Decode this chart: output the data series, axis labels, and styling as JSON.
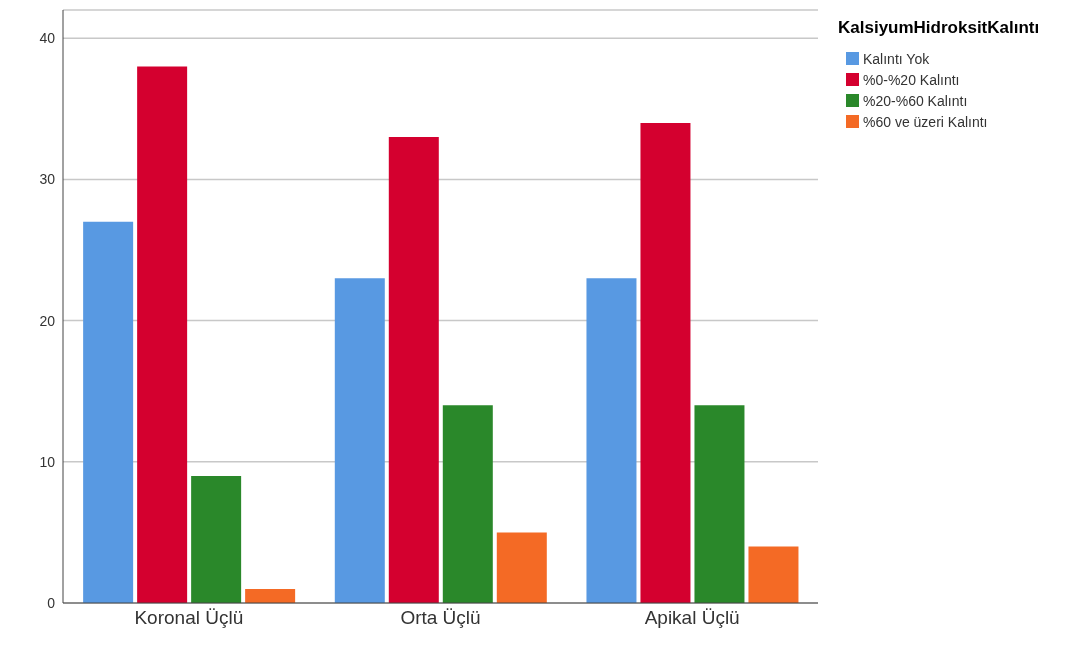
{
  "chart_data": {
    "type": "bar",
    "legend_title": "KalsiyumHidroksitKalıntı",
    "categories": [
      "Koronal Üçlü",
      "Orta Üçlü",
      "Apikal Üçlü"
    ],
    "series": [
      {
        "name": "Kalıntı Yok",
        "color": "#5899e2",
        "values": [
          27,
          23,
          23
        ]
      },
      {
        "name": "%0-%20 Kalıntı",
        "color": "#d4002f",
        "values": [
          38,
          33,
          34
        ]
      },
      {
        "name": "%20-%60 Kalıntı",
        "color": "#2a882a",
        "values": [
          9,
          14,
          14
        ]
      },
      {
        "name": "%60 ve üzeri Kalıntı",
        "color": "#f46a25",
        "values": [
          1,
          5,
          4
        ]
      }
    ],
    "ylim": [
      0,
      42
    ],
    "yticks": [
      0,
      10,
      20,
      30,
      40
    ],
    "grid": "y",
    "legend": "top right"
  }
}
